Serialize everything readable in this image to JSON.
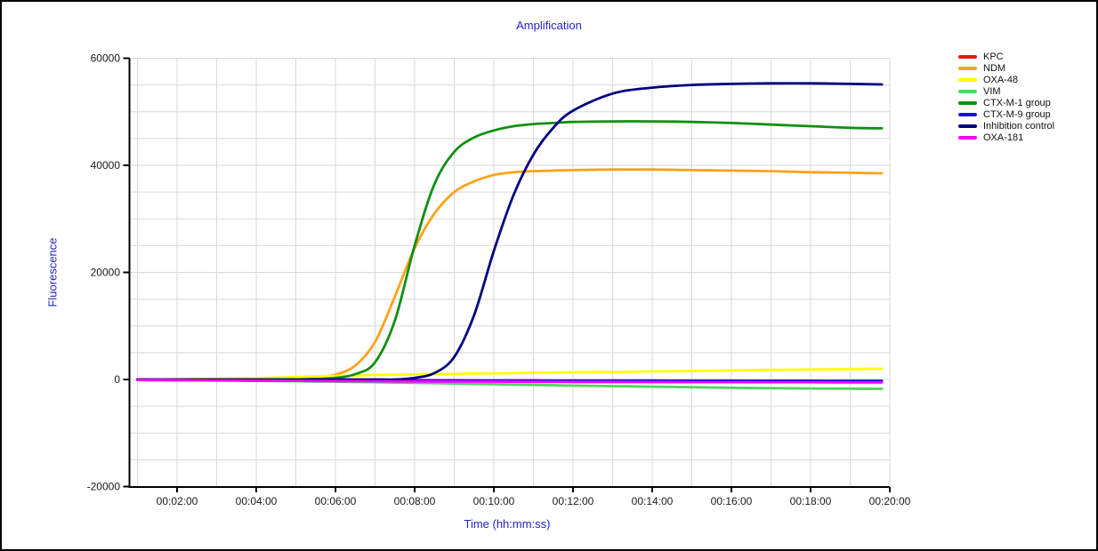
{
  "window": {
    "background": "#ffffff",
    "border_color": "#000000"
  },
  "chart": {
    "title": "Amplification",
    "title_color": "#2222cd",
    "xlabel": "Time (hh:mm:ss)",
    "ylabel": "Fluorescence",
    "axis_label_color": "#2222cd",
    "grid_color": "#d9d9d9",
    "axis_color": "#000000",
    "tick_label_color": "#1a1a1a"
  },
  "chart_data": {
    "type": "line",
    "title": "Amplification",
    "xlabel": "Time (hh:mm:ss)",
    "ylabel": "Fluorescence",
    "x_unit": "minutes",
    "xlim_minutes": [
      0.8,
      20.1
    ],
    "ylim": [
      -20000,
      60000
    ],
    "grid": true,
    "minor_grid_x_every_minutes": 1,
    "minor_grid_y_every": 5000,
    "legend_position": "right",
    "x_ticks_minutes": [
      2,
      4,
      6,
      8,
      10,
      12,
      14,
      16,
      18,
      20
    ],
    "x_tick_labels": [
      "00:02:00",
      "00:04:00",
      "00:06:00",
      "00:08:00",
      "00:10:00",
      "00:12:00",
      "00:14:00",
      "00:16:00",
      "00:18:00",
      "00:20:00"
    ],
    "y_ticks": [
      60000,
      40000,
      20000,
      0,
      -20000
    ],
    "y_tick_labels": [
      "60000",
      "40000",
      "20000",
      "0",
      "-20000"
    ],
    "x": [
      1,
      1.5,
      2,
      2.5,
      3,
      3.5,
      4,
      4.5,
      5,
      5.5,
      6,
      6.5,
      7,
      7.5,
      8,
      8.5,
      9,
      9.5,
      10,
      10.5,
      11,
      11.5,
      12,
      13,
      14,
      15,
      16,
      17,
      18,
      19,
      19.8
    ],
    "series": [
      {
        "name": "KPC",
        "color": "#ee1111",
        "values": [
          -90,
          -110,
          -130,
          -150,
          -170,
          -190,
          -210,
          -225,
          -240,
          -255,
          -270,
          -285,
          -300,
          -315,
          -325,
          -335,
          -345,
          -355,
          -365,
          -375,
          -385,
          -395,
          -405,
          -415,
          -425,
          -435,
          -445,
          -455,
          -465,
          -475,
          -480
        ]
      },
      {
        "name": "NDM",
        "color": "#ffa21a",
        "values": [
          0,
          0,
          0,
          0,
          0,
          0,
          0,
          50,
          100,
          300,
          900,
          2600,
          7000,
          15500,
          24500,
          31000,
          35000,
          37000,
          38200,
          38700,
          38900,
          39000,
          39100,
          39200,
          39200,
          39100,
          39000,
          38900,
          38700,
          38600,
          38500
        ]
      },
      {
        "name": "OXA-48",
        "color": "#ffff00",
        "values": [
          0,
          0,
          50,
          100,
          150,
          200,
          250,
          350,
          450,
          550,
          650,
          750,
          850,
          900,
          950,
          1000,
          1050,
          1100,
          1150,
          1200,
          1250,
          1300,
          1350,
          1400,
          1500,
          1600,
          1700,
          1800,
          1850,
          1950,
          2000
        ]
      },
      {
        "name": "VIM",
        "color": "#4fd65c",
        "values": [
          -100,
          -120,
          -150,
          -180,
          -200,
          -230,
          -260,
          -300,
          -340,
          -380,
          -420,
          -470,
          -520,
          -580,
          -640,
          -700,
          -770,
          -840,
          -900,
          -960,
          -1020,
          -1080,
          -1140,
          -1250,
          -1350,
          -1450,
          -1550,
          -1620,
          -1680,
          -1730,
          -1750
        ]
      },
      {
        "name": "CTX-M-1 group",
        "color": "#0f8f0f",
        "values": [
          0,
          0,
          0,
          0,
          0,
          0,
          0,
          0,
          0,
          100,
          300,
          1000,
          3200,
          11000,
          25000,
          36500,
          42500,
          45200,
          46500,
          47300,
          47700,
          47900,
          48100,
          48200,
          48200,
          48100,
          47900,
          47600,
          47300,
          47000,
          46900
        ]
      },
      {
        "name": "CTX-M-9 group",
        "color": "#1111ee",
        "values": [
          -50,
          -60,
          -70,
          -80,
          -90,
          -100,
          -100,
          -110,
          -110,
          -120,
          -120,
          -130,
          -130,
          -140,
          -140,
          -150,
          -150,
          -160,
          -160,
          -170,
          -170,
          -180,
          -180,
          -190,
          -200,
          -210,
          -220,
          -230,
          -240,
          -250,
          -250
        ]
      },
      {
        "name": "Inhibition control",
        "color": "#000080",
        "values": [
          0,
          0,
          0,
          0,
          0,
          0,
          0,
          0,
          0,
          0,
          0,
          0,
          0,
          0,
          300,
          1200,
          4200,
          12000,
          24000,
          34500,
          42000,
          47000,
          50200,
          53400,
          54500,
          55000,
          55200,
          55300,
          55300,
          55200,
          55100
        ]
      },
      {
        "name": "OXA-181",
        "color": "#ff00ff",
        "values": [
          -100,
          -120,
          -140,
          -160,
          -180,
          -200,
          -220,
          -240,
          -260,
          -280,
          -300,
          -320,
          -340,
          -360,
          -380,
          -390,
          -400,
          -410,
          -420,
          -430,
          -440,
          -450,
          -460,
          -470,
          -480,
          -490,
          -500,
          -510,
          -520,
          -540,
          -550
        ]
      }
    ]
  }
}
